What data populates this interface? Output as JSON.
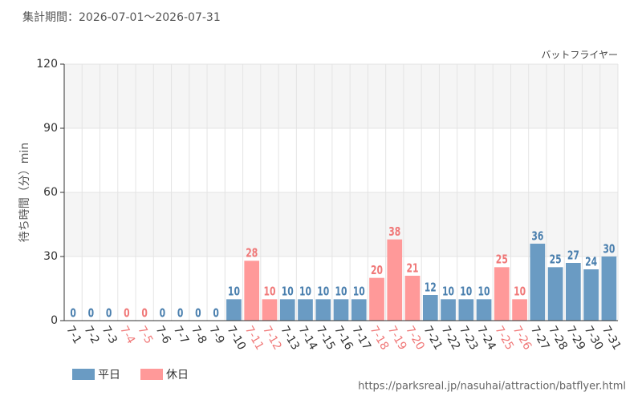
{
  "chart_data": {
    "type": "bar",
    "title": "集計期間：2026-07-01～2026-07-31",
    "subtitle": "バットフライヤー",
    "y_label": "待ち時間（分）min",
    "source": "https://parksreal.jp/nasuhai/attraction/batflyer.html",
    "categories": [
      "7-1",
      "7-2",
      "7-3",
      "7-4",
      "7-5",
      "7-6",
      "7-7",
      "7-8",
      "7-9",
      "7-10",
      "7-11",
      "7-12",
      "7-13",
      "7-14",
      "7-15",
      "7-16",
      "7-17",
      "7-18",
      "7-19",
      "7-20",
      "7-21",
      "7-22",
      "7-23",
      "7-24",
      "7-25",
      "7-26",
      "7-27",
      "7-28",
      "7-29",
      "7-30",
      "7-31"
    ],
    "series": [
      {
        "name": "平日",
        "color": "#6a9bc3",
        "label_color": "#4a7fae",
        "values": [
          0,
          0,
          0,
          null,
          null,
          0,
          0,
          0,
          0,
          10,
          null,
          null,
          10,
          10,
          10,
          10,
          10,
          null,
          null,
          null,
          12,
          10,
          10,
          10,
          null,
          null,
          36,
          25,
          27,
          24,
          30
        ]
      },
      {
        "name": "休日",
        "color": "#ff9999",
        "label_color": "#f07878",
        "values": [
          null,
          null,
          null,
          0,
          0,
          null,
          null,
          null,
          null,
          null,
          28,
          10,
          null,
          null,
          null,
          null,
          null,
          20,
          38,
          21,
          null,
          null,
          null,
          null,
          25,
          10,
          null,
          null,
          null,
          null,
          null
        ]
      }
    ],
    "ylim": [
      0,
      120
    ],
    "yticks": [
      0,
      30,
      60,
      90,
      120
    ],
    "grid": true
  }
}
